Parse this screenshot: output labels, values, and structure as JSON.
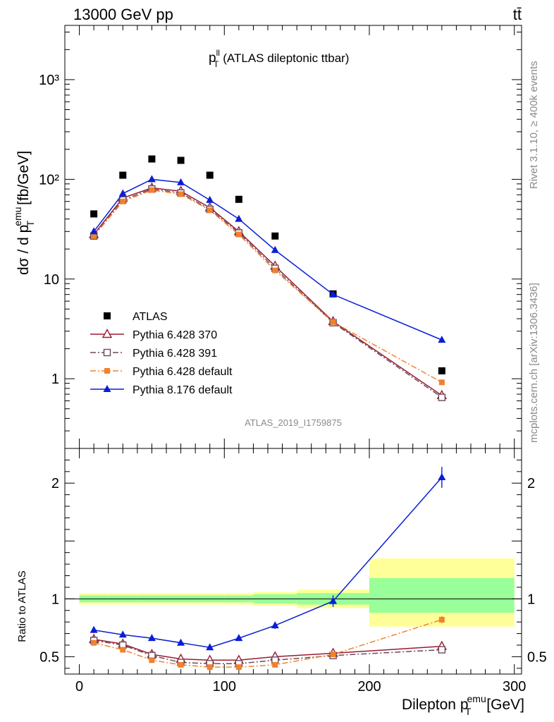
{
  "header": {
    "energy_label": "13000 GeV pp",
    "process_label": "tt̄"
  },
  "side_labels": {
    "rivet": "Rivet 3.1.10, ≥ 400k events",
    "mcplots": "mcplots.cern.ch [arXiv:1306.3436]"
  },
  "chart_data": [
    {
      "type": "line",
      "title": "(ATLAS dileptonic ttbar)",
      "title_symbol": "p",
      "title_symbol_sup": "ll",
      "title_symbol_sub": "T",
      "analysis_tag": "ATLAS_2019_I1759875",
      "ylabel": "dσ / d p",
      "ylabel_sup": "emu",
      "ylabel_sub": "T",
      "ylabel_unit": "[fb/GeV]",
      "yscale": "log",
      "xlim": [
        -10,
        305
      ],
      "ylim": [
        0.2,
        3500
      ],
      "y_ticks": [
        {
          "value": 1000,
          "label": "10³"
        },
        {
          "value": 100,
          "label": "10²"
        },
        {
          "value": 10,
          "label": "10"
        },
        {
          "value": 1,
          "label": "1"
        }
      ],
      "x": [
        10,
        30,
        50,
        70,
        90,
        110,
        135,
        175,
        250
      ],
      "series": [
        {
          "name": "ATLAS",
          "color": "#000000",
          "marker": "square",
          "values": [
            45,
            110,
            160,
            155,
            110,
            63,
            27,
            7.1,
            1.2
          ]
        },
        {
          "name": "Pythia 6.428 370",
          "color": "#9b1b30",
          "marker": "open-triangle",
          "line": "solid",
          "values": [
            28,
            65,
            82,
            76,
            52,
            30,
            13.5,
            3.75,
            0.68
          ]
        },
        {
          "name": "Pythia 6.428 391",
          "color": "#6b4a5a",
          "marker": "open-square",
          "line": "dashdot",
          "values": [
            27,
            62,
            80,
            73,
            50,
            29,
            12.8,
            3.65,
            0.65
          ]
        },
        {
          "name": "Pythia 6.428 default",
          "color": "#f0822e",
          "marker": "filled-square",
          "line": "dashdot",
          "values": [
            27,
            60,
            78,
            71,
            49,
            28,
            12.2,
            3.7,
            0.92
          ]
        },
        {
          "name": "Pythia 8.176 default",
          "color": "#0a1ed6",
          "marker": "filled-triangle",
          "line": "solid",
          "values": [
            30,
            72,
            100,
            93,
            62,
            40,
            19.5,
            7.0,
            2.45
          ]
        }
      ],
      "legend_position": "middle-left"
    },
    {
      "type": "line",
      "ylabel": "Ratio to ATLAS",
      "xlabel": "Dilepton p",
      "xlabel_sup": "emu",
      "xlabel_sub": "T",
      "xlabel_unit": "[GeV]",
      "xlim": [
        -10,
        305
      ],
      "ylim": [
        0.35,
        2.3
      ],
      "x_ticks": [
        0,
        100,
        200,
        300
      ],
      "y_ticks": [
        {
          "value": 2,
          "label": "2"
        },
        {
          "value": 1,
          "label": "1"
        },
        {
          "value": 0.5,
          "label": "0.5"
        }
      ],
      "x": [
        10,
        30,
        50,
        70,
        90,
        110,
        135,
        175,
        250
      ],
      "uncertainty_bands": [
        {
          "x_low": 0,
          "x_high": 20,
          "inner": [
            0.97,
            1.03
          ],
          "outer": [
            0.95,
            1.05
          ]
        },
        {
          "x_low": 20,
          "x_high": 40,
          "inner": [
            0.97,
            1.03
          ],
          "outer": [
            0.95,
            1.05
          ]
        },
        {
          "x_low": 40,
          "x_high": 60,
          "inner": [
            0.97,
            1.03
          ],
          "outer": [
            0.95,
            1.05
          ]
        },
        {
          "x_low": 60,
          "x_high": 80,
          "inner": [
            0.97,
            1.03
          ],
          "outer": [
            0.95,
            1.05
          ]
        },
        {
          "x_low": 80,
          "x_high": 100,
          "inner": [
            0.97,
            1.03
          ],
          "outer": [
            0.95,
            1.05
          ]
        },
        {
          "x_low": 100,
          "x_high": 120,
          "inner": [
            0.97,
            1.03
          ],
          "outer": [
            0.95,
            1.05
          ]
        },
        {
          "x_low": 120,
          "x_high": 150,
          "inner": [
            0.96,
            1.04
          ],
          "outer": [
            0.94,
            1.06
          ]
        },
        {
          "x_low": 150,
          "x_high": 200,
          "inner": [
            0.95,
            1.05
          ],
          "outer": [
            0.92,
            1.08
          ]
        },
        {
          "x_low": 200,
          "x_high": 300,
          "inner": [
            0.88,
            1.18
          ],
          "outer": [
            0.76,
            1.35
          ]
        }
      ],
      "series": [
        {
          "name": "Pythia 6.428 370",
          "color": "#9b1b30",
          "marker": "open-triangle",
          "line": "solid",
          "values": [
            0.65,
            0.61,
            0.52,
            0.48,
            0.47,
            0.47,
            0.5,
            0.53,
            0.59
          ],
          "errors": [
            0.02,
            0.02,
            0.01,
            0.01,
            0.01,
            0.01,
            0.01,
            0.01,
            0.03
          ]
        },
        {
          "name": "Pythia 6.428 391",
          "color": "#6b4a5a",
          "marker": "open-square",
          "line": "dashdot",
          "values": [
            0.64,
            0.6,
            0.51,
            0.45,
            0.44,
            0.44,
            0.47,
            0.51,
            0.56
          ],
          "errors": [
            0.02,
            0.02,
            0.01,
            0.01,
            0.01,
            0.01,
            0.01,
            0.01,
            0.03
          ]
        },
        {
          "name": "Pythia 6.428 default",
          "color": "#f0822e",
          "marker": "filled-square",
          "line": "dashdot",
          "values": [
            0.62,
            0.56,
            0.47,
            0.43,
            0.41,
            0.41,
            0.43,
            0.52,
            0.82
          ],
          "errors": [
            0.02,
            0.01,
            0.01,
            0.01,
            0.01,
            0.01,
            0.01,
            0.01,
            0.03
          ]
        },
        {
          "name": "Pythia 8.176 default",
          "color": "#0a1ed6",
          "marker": "filled-triangle",
          "line": "solid",
          "values": [
            0.73,
            0.69,
            0.66,
            0.62,
            0.58,
            0.66,
            0.77,
            0.98,
            2.05
          ],
          "errors": [
            0.025,
            0.02,
            0.015,
            0.015,
            0.02,
            0.025,
            0.03,
            0.05,
            0.09
          ]
        }
      ]
    }
  ]
}
